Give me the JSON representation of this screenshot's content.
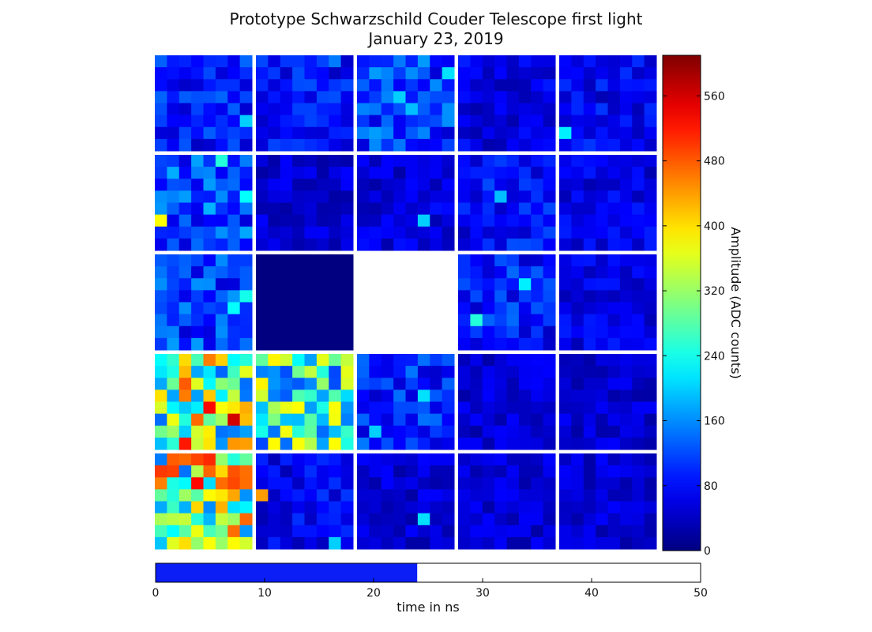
{
  "chart_data": {
    "type": "heatmap",
    "title": "Prototype Schwarzschild Couder Telescope first light",
    "subtitle": "January 23, 2019",
    "grid": {
      "modules_rows": 5,
      "modules_cols": 5,
      "pixels_per_module": 8,
      "empty_modules": [
        [
          2,
          2
        ]
      ],
      "uniform_modules": [
        {
          "row": 2,
          "col": 1,
          "value": 0
        }
      ],
      "module_levels": [
        [
          90,
          80,
          110,
          60,
          70
        ],
        [
          120,
          50,
          55,
          80,
          60
        ],
        [
          110,
          0,
          null,
          90,
          60
        ],
        [
          300,
          250,
          100,
          50,
          50
        ],
        [
          320,
          70,
          50,
          50,
          50
        ]
      ],
      "hot_pixels": [
        {
          "module": [
            0,
            0
          ],
          "px": [
            7,
            5
          ],
          "value": 200
        },
        {
          "module": [
            0,
            1
          ],
          "px": [
            6,
            0
          ],
          "value": 150
        },
        {
          "module": [
            0,
            2
          ],
          "px": [
            3,
            3
          ],
          "value": 200
        },
        {
          "module": [
            0,
            2
          ],
          "px": [
            4,
            4
          ],
          "value": 190
        },
        {
          "module": [
            0,
            2
          ],
          "px": [
            7,
            1
          ],
          "value": 210
        },
        {
          "module": [
            0,
            2
          ],
          "px": [
            1,
            6
          ],
          "value": 170
        },
        {
          "module": [
            0,
            4
          ],
          "px": [
            0,
            6
          ],
          "value": 220
        },
        {
          "module": [
            1,
            0
          ],
          "px": [
            0,
            5
          ],
          "value": 380
        },
        {
          "module": [
            1,
            0
          ],
          "px": [
            5,
            0
          ],
          "value": 250
        },
        {
          "module": [
            1,
            0
          ],
          "px": [
            7,
            3
          ],
          "value": 230
        },
        {
          "module": [
            1,
            2
          ],
          "px": [
            5,
            5
          ],
          "value": 200
        },
        {
          "module": [
            1,
            3
          ],
          "px": [
            3,
            3
          ],
          "value": 190
        },
        {
          "module": [
            2,
            0
          ],
          "px": [
            6,
            4
          ],
          "value": 230
        },
        {
          "module": [
            2,
            0
          ],
          "px": [
            7,
            3
          ],
          "value": 240
        },
        {
          "module": [
            2,
            3
          ],
          "px": [
            1,
            5
          ],
          "value": 250
        },
        {
          "module": [
            2,
            3
          ],
          "px": [
            5,
            2
          ],
          "value": 220
        },
        {
          "module": [
            3,
            0
          ],
          "px": [
            2,
            7
          ],
          "value": 520
        },
        {
          "module": [
            3,
            0
          ],
          "px": [
            4,
            4
          ],
          "value": 530
        },
        {
          "module": [
            3,
            0
          ],
          "px": [
            6,
            5
          ],
          "value": 560
        },
        {
          "module": [
            3,
            0
          ],
          "px": [
            2,
            2
          ],
          "value": 480
        },
        {
          "module": [
            3,
            0
          ],
          "px": [
            3,
            5
          ],
          "value": 470
        },
        {
          "module": [
            3,
            2
          ],
          "px": [
            1,
            6
          ],
          "value": 200
        },
        {
          "module": [
            3,
            2
          ],
          "px": [
            5,
            3
          ],
          "value": 210
        },
        {
          "module": [
            4,
            0
          ],
          "px": [
            0,
            1
          ],
          "value": 500
        },
        {
          "module": [
            4,
            0
          ],
          "px": [
            3,
            2
          ],
          "value": 530
        },
        {
          "module": [
            4,
            0
          ],
          "px": [
            4,
            0
          ],
          "value": 510
        },
        {
          "module": [
            4,
            0
          ],
          "px": [
            5,
            2
          ],
          "value": 470
        },
        {
          "module": [
            4,
            1
          ],
          "px": [
            0,
            3
          ],
          "value": 440
        },
        {
          "module": [
            4,
            1
          ],
          "px": [
            6,
            7
          ],
          "value": 200
        },
        {
          "module": [
            4,
            2
          ],
          "px": [
            5,
            5
          ],
          "value": 210
        }
      ]
    },
    "colorbar": {
      "label": "Amplitude (ADC counts)",
      "min": 0,
      "max": 610,
      "ticks": [
        0,
        80,
        160,
        240,
        320,
        400,
        480,
        560
      ],
      "colormap": "jet"
    },
    "time_bar": {
      "xlabel": "time in ns",
      "xlim": [
        0,
        50
      ],
      "ticks": [
        0,
        10,
        20,
        30,
        40,
        50
      ],
      "value": 24,
      "fill_color": "#0a1ef5"
    }
  }
}
